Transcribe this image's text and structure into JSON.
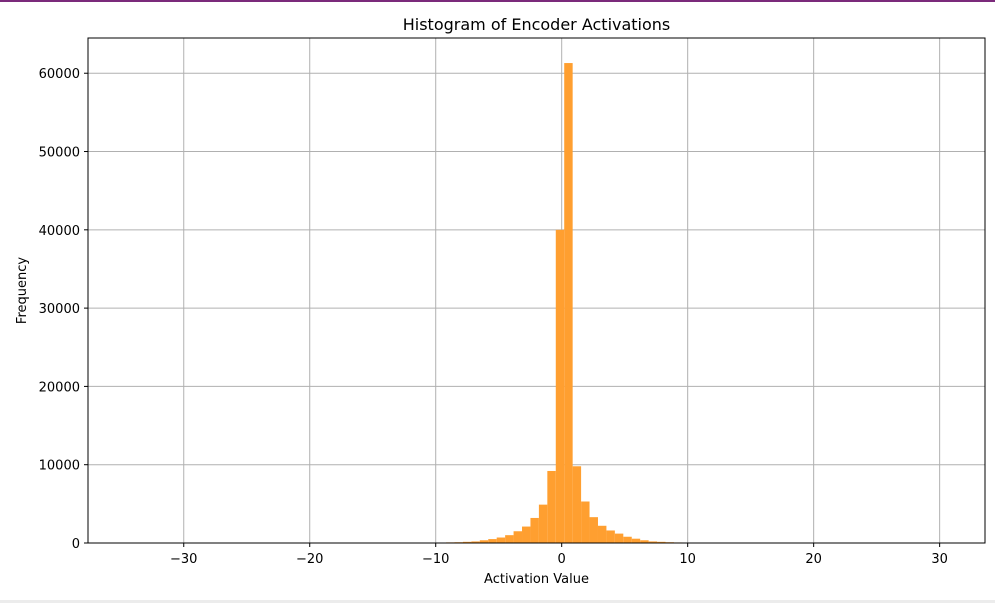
{
  "colors": {
    "bar": "#ff9f30",
    "grid": "#b0b0b0",
    "frame": "#000000",
    "top_rule": "#7b2a7b"
  },
  "chart_data": {
    "type": "bar",
    "title": "Histogram of Encoder Activations",
    "xlabel": "Activation Value",
    "ylabel": "Frequency",
    "xlim": [
      -37.6,
      33.6
    ],
    "ylim": [
      0,
      64500
    ],
    "grid": true,
    "bin_width": 0.67,
    "x_ticks": [
      -30,
      -20,
      -10,
      0,
      10,
      20,
      30
    ],
    "x_tick_labels": [
      "−30",
      "−20",
      "−10",
      "0",
      "10",
      "20",
      "30"
    ],
    "y_ticks": [
      0,
      10000,
      20000,
      30000,
      40000,
      50000,
      60000
    ],
    "y_tick_labels": [
      "0",
      "10000",
      "20000",
      "30000",
      "40000",
      "50000",
      "60000"
    ],
    "bin_edges": [
      -13.2,
      -12.53,
      -11.86,
      -11.19,
      -10.52,
      -9.85,
      -9.18,
      -8.51,
      -7.84,
      -7.17,
      -6.5,
      -5.83,
      -5.16,
      -4.49,
      -3.82,
      -3.15,
      -2.48,
      -1.81,
      -1.14,
      -0.47,
      0.2,
      0.87,
      1.54,
      2.21,
      2.88,
      3.55,
      4.22,
      4.89,
      5.56,
      6.23,
      6.9,
      7.57,
      8.24,
      8.91,
      9.58,
      10.25,
      10.92,
      11.59,
      12.26,
      12.93,
      13.6,
      14.27
    ],
    "values": [
      20,
      25,
      30,
      40,
      50,
      60,
      80,
      100,
      150,
      200,
      350,
      500,
      700,
      1000,
      1500,
      2100,
      3200,
      4900,
      9200,
      40000,
      61300,
      9800,
      5300,
      3300,
      2200,
      1600,
      1200,
      800,
      550,
      350,
      200,
      150,
      100,
      70,
      60,
      50,
      40,
      30,
      25,
      20,
      15
    ]
  }
}
